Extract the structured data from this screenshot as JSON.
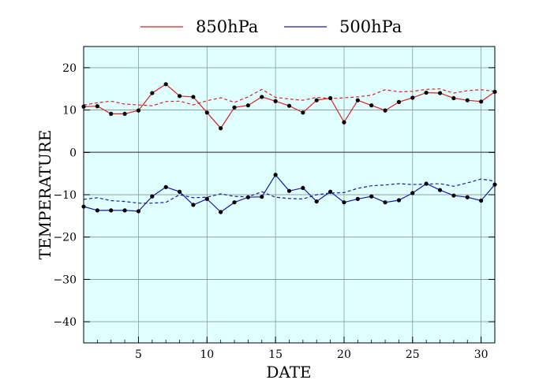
{
  "chart_data": {
    "type": "line",
    "xlabel": "DATE",
    "ylabel": "TEMPERATURE",
    "xlim": [
      1,
      31
    ],
    "ylim": [
      -45,
      25
    ],
    "x_ticks": [
      5,
      10,
      15,
      20,
      25,
      30
    ],
    "y_ticks": [
      20,
      10,
      0,
      -10,
      -20,
      -30,
      -40
    ],
    "grid": true,
    "zero_line": true,
    "background": "#e0ffff",
    "legend_position": "top-center",
    "x": [
      1,
      2,
      3,
      4,
      5,
      6,
      7,
      8,
      9,
      10,
      11,
      12,
      13,
      14,
      15,
      16,
      17,
      18,
      19,
      20,
      21,
      22,
      23,
      24,
      25,
      26,
      27,
      28,
      29,
      30,
      31
    ],
    "series": [
      {
        "name": "850hPa",
        "color": "#dd2222",
        "style": "solid",
        "markers": true,
        "values": [
          10.8,
          10.9,
          9.1,
          9.1,
          9.9,
          14.0,
          16.1,
          13.3,
          13.1,
          9.4,
          5.7,
          10.6,
          11.1,
          13.1,
          12.1,
          11.0,
          9.4,
          12.3,
          12.8,
          7.1,
          12.3,
          11.1,
          9.9,
          11.9,
          12.9,
          14.1,
          14.0,
          12.8,
          12.3,
          12.0,
          14.3
        ]
      },
      {
        "name": "",
        "color": "#dd2222",
        "style": "dashed",
        "markers": false,
        "values": [
          11.2,
          11.7,
          12.1,
          11.4,
          11.2,
          11.0,
          12.0,
          12.1,
          11.2,
          12.2,
          12.9,
          11.8,
          13.1,
          14.9,
          13.0,
          12.6,
          12.3,
          13.0,
          12.7,
          12.9,
          13.1,
          13.5,
          14.8,
          14.3,
          14.4,
          14.9,
          15.0,
          14.0,
          14.6,
          14.8,
          14.4
        ]
      },
      {
        "name": "500hPa",
        "color": "#1a1aaa",
        "style": "solid",
        "markers": true,
        "values": [
          -12.8,
          -13.7,
          -13.7,
          -13.7,
          -13.9,
          -10.4,
          -8.2,
          -9.3,
          -12.4,
          -11.0,
          -14.1,
          -11.8,
          -10.6,
          -10.5,
          -5.3,
          -9.1,
          -8.4,
          -11.6,
          -9.3,
          -11.8,
          -11.0,
          -10.4,
          -11.8,
          -11.3,
          -9.6,
          -7.4,
          -8.9,
          -10.2,
          -10.6,
          -11.4,
          -7.6
        ]
      },
      {
        "name": "",
        "color": "#1a1aaa",
        "style": "dashed",
        "markers": false,
        "values": [
          -11.1,
          -10.7,
          -11.4,
          -11.6,
          -12.0,
          -12.0,
          -11.8,
          -10.0,
          -10.7,
          -10.6,
          -9.8,
          -10.4,
          -10.5,
          -9.3,
          -10.6,
          -10.9,
          -11.0,
          -10.0,
          -9.6,
          -9.5,
          -8.5,
          -7.9,
          -7.7,
          -7.4,
          -7.6,
          -7.5,
          -7.4,
          -8.0,
          -7.2,
          -6.3,
          -6.8
        ]
      }
    ]
  }
}
